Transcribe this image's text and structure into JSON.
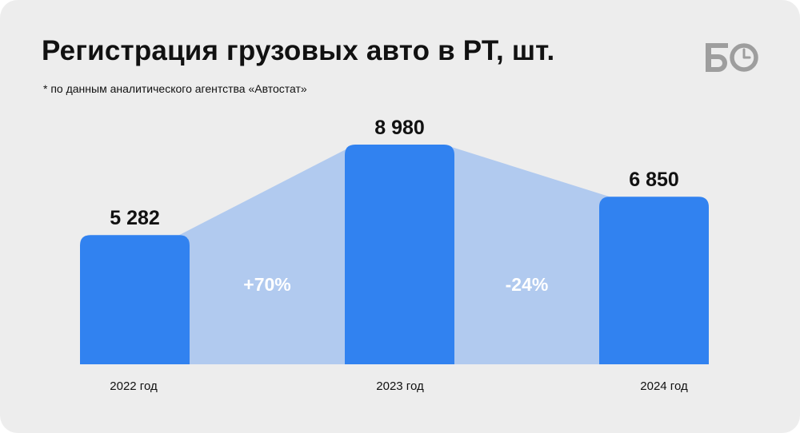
{
  "header": {
    "title": "Регистрация грузовых авто в РТ, шт.",
    "subtitle": "* по данным аналитического агентства «Автостат»"
  },
  "logo": {
    "icon": "bo-logo-icon",
    "color": "#9e9e9e"
  },
  "colors": {
    "background": "#ededed",
    "bar": "#3182f0",
    "band": "#b1caef",
    "text": "#111111",
    "change_text": "#ffffff"
  },
  "chart_data": {
    "type": "bar",
    "categories": [
      "2022 год",
      "2023 год",
      "2024 год"
    ],
    "values": [
      5282,
      8980,
      6850
    ],
    "value_labels": [
      "5 282",
      "8 980",
      "6 850"
    ],
    "changes": [
      "+70%",
      "-24%"
    ],
    "title": "Регистрация грузовых авто в РТ, шт.",
    "xlabel": "",
    "ylabel": "",
    "ylim": [
      0,
      10000
    ],
    "grid": false,
    "legend": "none"
  }
}
